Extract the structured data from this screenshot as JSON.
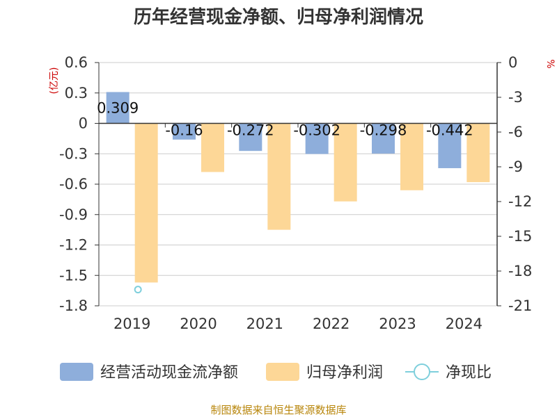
{
  "chart_data": {
    "type": "bar",
    "title": "历年经营现金净额、归母净利润情况",
    "categories": [
      "2019",
      "2020",
      "2021",
      "2022",
      "2023",
      "2024"
    ],
    "series": [
      {
        "name": "经营活动现金流净额",
        "axis": "left",
        "type": "bar",
        "color": "#8eaedb",
        "values": [
          0.309,
          -0.16,
          -0.272,
          -0.302,
          -0.298,
          -0.442
        ],
        "labels": [
          "0.309",
          "-0.16",
          "-0.272",
          "-0.302",
          "-0.298",
          "-0.442"
        ]
      },
      {
        "name": "归母净利润",
        "axis": "left",
        "type": "bar",
        "color": "#fdd797",
        "values": [
          -1.57,
          -0.48,
          -1.05,
          -0.77,
          -0.66,
          -0.58
        ]
      },
      {
        "name": "净现比",
        "axis": "right",
        "type": "scatter",
        "color": "#7ecfdc",
        "values": [
          -19.6,
          null,
          null,
          null,
          null,
          null
        ]
      }
    ],
    "y_left": {
      "unit": "(亿元)",
      "lim": [
        -1.8,
        0.6
      ],
      "ticks": [
        "0.6",
        "0.3",
        "0",
        "-0.3",
        "-0.6",
        "-0.9",
        "-1.2",
        "-1.5",
        "-1.8"
      ]
    },
    "y_right": {
      "unit": "%",
      "lim": [
        -21,
        0
      ],
      "ticks": [
        "0",
        "-3",
        "-6",
        "-9",
        "-12",
        "-15",
        "-18",
        "-21"
      ]
    },
    "grid": true,
    "legend": "bottom",
    "source": "制图数据来自恒生聚源数据库"
  }
}
